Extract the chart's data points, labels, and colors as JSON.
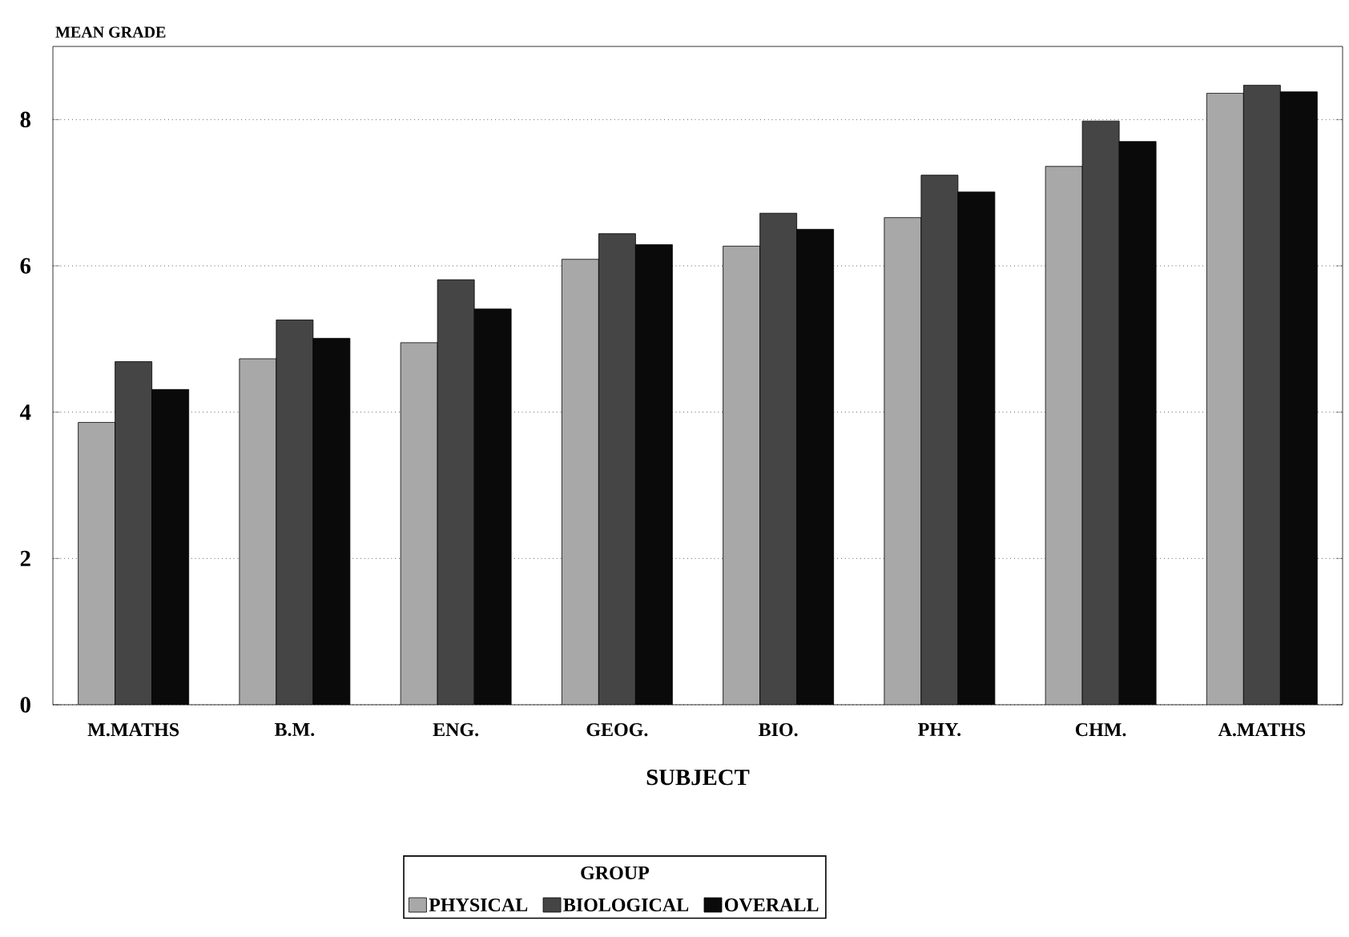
{
  "chart_data": {
    "type": "bar",
    "ylabel": "MEAN GRADE",
    "xlabel": "SUBJECT",
    "legend_title": "GROUP",
    "categories": [
      "M.MATHS",
      "B.M.",
      "ENG.",
      "GEOG.",
      "BIO.",
      "PHY.",
      "CHM.",
      "A.MATHS"
    ],
    "series": [
      {
        "name": "PHYSICAL",
        "color": "#a8a8a8",
        "values": [
          3.86,
          4.73,
          4.95,
          6.09,
          6.27,
          6.66,
          7.36,
          8.36
        ]
      },
      {
        "name": "BIOLOGICAL",
        "color": "#454545",
        "values": [
          4.69,
          5.26,
          5.81,
          6.44,
          6.72,
          7.24,
          7.98,
          8.47
        ]
      },
      {
        "name": "OVERALL",
        "color": "#0a0a0a",
        "values": [
          4.31,
          5.01,
          5.41,
          6.29,
          6.5,
          7.01,
          7.7,
          8.38
        ]
      }
    ],
    "ylim": [
      0,
      9
    ],
    "yticks": [
      0,
      2,
      4,
      6,
      8
    ],
    "grid": "y",
    "legend": "bottom"
  }
}
